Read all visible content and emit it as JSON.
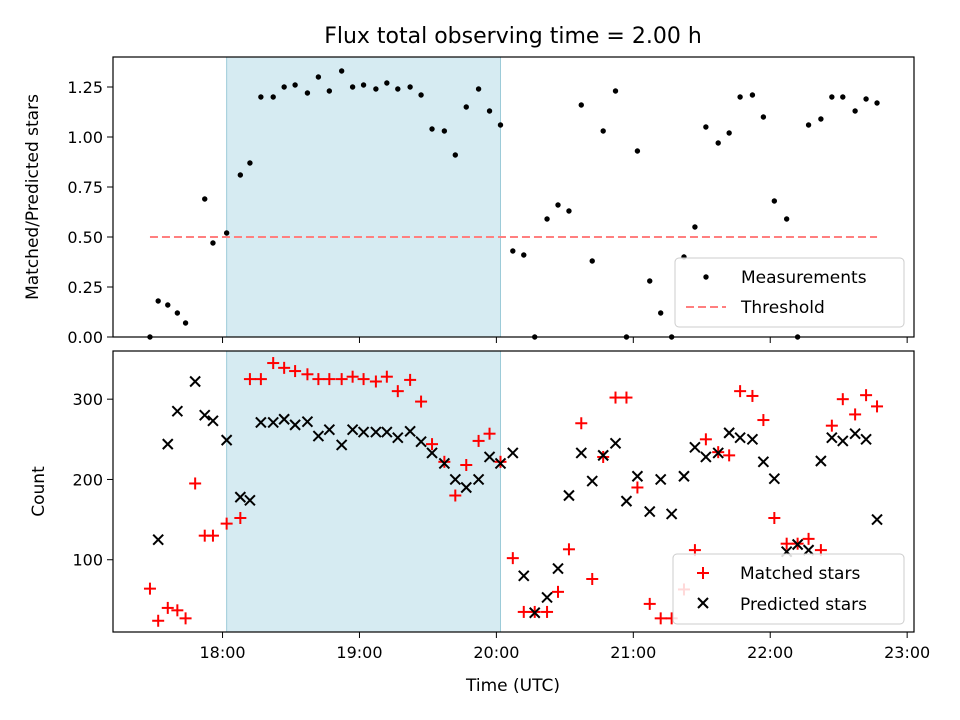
{
  "figure": {
    "title": "Flux total observing time = 2.00 h",
    "xlabel": "Time (UTC)",
    "highlight_span_hours": [
      18.03,
      20.03
    ],
    "highlight_color": "#add8e6"
  },
  "chart_data": [
    {
      "type": "scatter",
      "ylabel": "Matched/Predicted stars",
      "xlim": [
        17.2,
        23.05
      ],
      "ylim": [
        0,
        1.4
      ],
      "x_ticks": [
        18,
        19,
        20,
        21,
        22,
        23
      ],
      "y_ticks": [
        0.0,
        0.25,
        0.5,
        0.75,
        1.0,
        1.25
      ],
      "y_tick_labels": [
        "0.00",
        "0.25",
        "0.50",
        "0.75",
        "1.00",
        "1.25"
      ],
      "legend_position": "lower-right",
      "series": [
        {
          "name": "Measurements",
          "color": "#000000",
          "marker": "dot",
          "x": [
            17.47,
            17.53,
            17.6,
            17.67,
            17.73,
            17.87,
            17.93,
            18.03,
            18.13,
            18.2,
            18.28,
            18.37,
            18.45,
            18.53,
            18.62,
            18.7,
            18.78,
            18.87,
            18.95,
            19.03,
            19.12,
            19.2,
            19.28,
            19.37,
            19.45,
            19.53,
            19.62,
            19.7,
            19.78,
            19.87,
            19.95,
            20.03,
            20.12,
            20.2,
            20.28,
            20.37,
            20.45,
            20.53,
            20.62,
            20.7,
            20.78,
            20.87,
            20.95,
            21.03,
            21.12,
            21.2,
            21.28,
            21.37,
            21.45,
            21.53,
            21.62,
            21.7,
            21.78,
            21.87,
            21.95,
            22.03,
            22.12,
            22.2,
            22.28,
            22.37,
            22.45,
            22.53,
            22.62,
            22.7,
            22.78
          ],
          "y": [
            0.0,
            0.18,
            0.16,
            0.12,
            0.07,
            0.69,
            0.47,
            0.52,
            0.81,
            0.87,
            1.2,
            1.2,
            1.25,
            1.26,
            1.22,
            1.3,
            1.23,
            1.33,
            1.25,
            1.26,
            1.24,
            1.27,
            1.24,
            1.25,
            1.21,
            1.04,
            1.03,
            0.91,
            1.15,
            1.24,
            1.13,
            1.06,
            0.43,
            0.41,
            0.0,
            0.59,
            0.66,
            0.63,
            1.16,
            0.38,
            1.03,
            1.23,
            0.0,
            0.93,
            0.28,
            0.12,
            0.0,
            0.4,
            0.55,
            1.05,
            0.97,
            1.02,
            1.2,
            1.21,
            1.1,
            0.68,
            0.59,
            0.0,
            1.06,
            1.09,
            1.2,
            1.2,
            1.13,
            1.19,
            1.17
          ]
        },
        {
          "name": "Threshold",
          "color": "#ff7f7f",
          "style": "dashed",
          "x": [
            17.47,
            22.78
          ],
          "y": [
            0.5,
            0.5
          ]
        }
      ]
    },
    {
      "type": "scatter",
      "ylabel": "Count",
      "xlim": [
        17.2,
        23.05
      ],
      "ylim": [
        10,
        360
      ],
      "x_ticks": [
        18,
        19,
        20,
        21,
        22,
        23
      ],
      "x_tick_labels": [
        "18:00",
        "19:00",
        "20:00",
        "21:00",
        "22:00",
        "23:00"
      ],
      "y_ticks": [
        100,
        200,
        300
      ],
      "y_tick_labels": [
        "100",
        "200",
        "300"
      ],
      "legend_position": "lower-right",
      "series": [
        {
          "name": "Matched stars",
          "color": "#ff0000",
          "marker": "plus",
          "x": [
            17.47,
            17.53,
            17.6,
            17.67,
            17.73,
            17.8,
            17.87,
            17.93,
            18.03,
            18.13,
            18.2,
            18.28,
            18.37,
            18.45,
            18.53,
            18.62,
            18.7,
            18.78,
            18.87,
            18.95,
            19.03,
            19.12,
            19.2,
            19.28,
            19.37,
            19.45,
            19.53,
            19.62,
            19.7,
            19.78,
            19.87,
            19.95,
            20.03,
            20.12,
            20.2,
            20.28,
            20.37,
            20.45,
            20.53,
            20.62,
            20.7,
            20.78,
            20.87,
            20.95,
            21.03,
            21.12,
            21.2,
            21.28,
            21.37,
            21.45,
            21.53,
            21.62,
            21.7,
            21.78,
            21.87,
            21.95,
            22.03,
            22.12,
            22.2,
            22.28,
            22.37,
            22.45,
            22.53,
            22.62,
            22.7,
            22.78
          ],
          "y": [
            64,
            24,
            40,
            37,
            27,
            195,
            130,
            130,
            145,
            152,
            325,
            325,
            345,
            339,
            335,
            331,
            325,
            325,
            325,
            328,
            325,
            322,
            328,
            310,
            324,
            297,
            244,
            222,
            180,
            218,
            248,
            257,
            222,
            102,
            35,
            35,
            35,
            60,
            113,
            270,
            76,
            228,
            302,
            302,
            190,
            45,
            27,
            27,
            63,
            112,
            250,
            234,
            230,
            310,
            304,
            274,
            152,
            120,
            120,
            126,
            112,
            267,
            300,
            281,
            305,
            291
          ]
        },
        {
          "name": "Predicted stars",
          "color": "#000000",
          "marker": "x",
          "x": [
            17.53,
            17.6,
            17.67,
            17.8,
            17.87,
            17.93,
            18.03,
            18.13,
            18.2,
            18.28,
            18.37,
            18.45,
            18.53,
            18.62,
            18.7,
            18.78,
            18.87,
            18.95,
            19.03,
            19.12,
            19.2,
            19.28,
            19.37,
            19.45,
            19.53,
            19.62,
            19.7,
            19.78,
            19.87,
            19.95,
            20.03,
            20.12,
            20.2,
            20.28,
            20.37,
            20.45,
            20.53,
            20.62,
            20.7,
            20.78,
            20.87,
            20.95,
            21.03,
            21.12,
            21.2,
            21.28,
            21.37,
            21.45,
            21.53,
            21.62,
            21.7,
            21.78,
            21.87,
            21.95,
            22.03,
            22.12,
            22.2,
            22.28,
            22.37,
            22.45,
            22.53,
            22.62,
            22.7,
            22.78
          ],
          "y": [
            125,
            244,
            285,
            322,
            280,
            273,
            249,
            178,
            174,
            271,
            271,
            275,
            268,
            272,
            254,
            262,
            243,
            262,
            259,
            259,
            259,
            252,
            260,
            247,
            233,
            220,
            200,
            190,
            200,
            228,
            220,
            233,
            80,
            34,
            53,
            89,
            180,
            233,
            198,
            230,
            245,
            173,
            204,
            160,
            200,
            157,
            204,
            240,
            228,
            233,
            258,
            252,
            250,
            222,
            201,
            110,
            119,
            112,
            223,
            252,
            248,
            257,
            250,
            150
          ]
        }
      ]
    }
  ]
}
